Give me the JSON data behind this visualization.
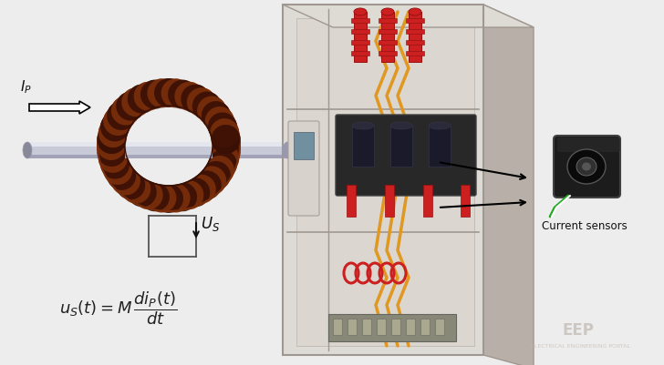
{
  "background_color": "#ededee",
  "ip_label": "$I_P$",
  "us_label": "$U_S$",
  "current_sensors_label": "Current sensors",
  "eep_label": "EEP",
  "eep_sublabel": "ELECTRICAL ENGINEERING PORTAL",
  "coil_outer_color": "#7a2e0a",
  "coil_inner_color": "#c05020",
  "coil_dark_color": "#3a1005",
  "rod_highlight": "#e8eaf0",
  "rod_mid": "#c8cad8",
  "rod_shadow": "#9899b0",
  "rod_end_color": "#888898",
  "arrow_color": "#111111",
  "text_color": "#111111",
  "formula_color": "#222222",
  "us_wire_color": "#555555",
  "cab_front_color": "#d0cac2",
  "cab_inner_color": "#e8e4de",
  "cab_inner_dark": "#c0b8b0",
  "cab_right_color": "#b8b0a8",
  "cab_top_color": "#dedad4",
  "cab_edge_color": "#a09890",
  "orange_color": "#e09820",
  "red_color": "#cc2020",
  "dark_sw_color": "#282828",
  "sensor_black": "#151515",
  "sensor_gray": "#3a3a3a",
  "green_cable": "#22aa22",
  "eep_color": "#c0b8b0"
}
